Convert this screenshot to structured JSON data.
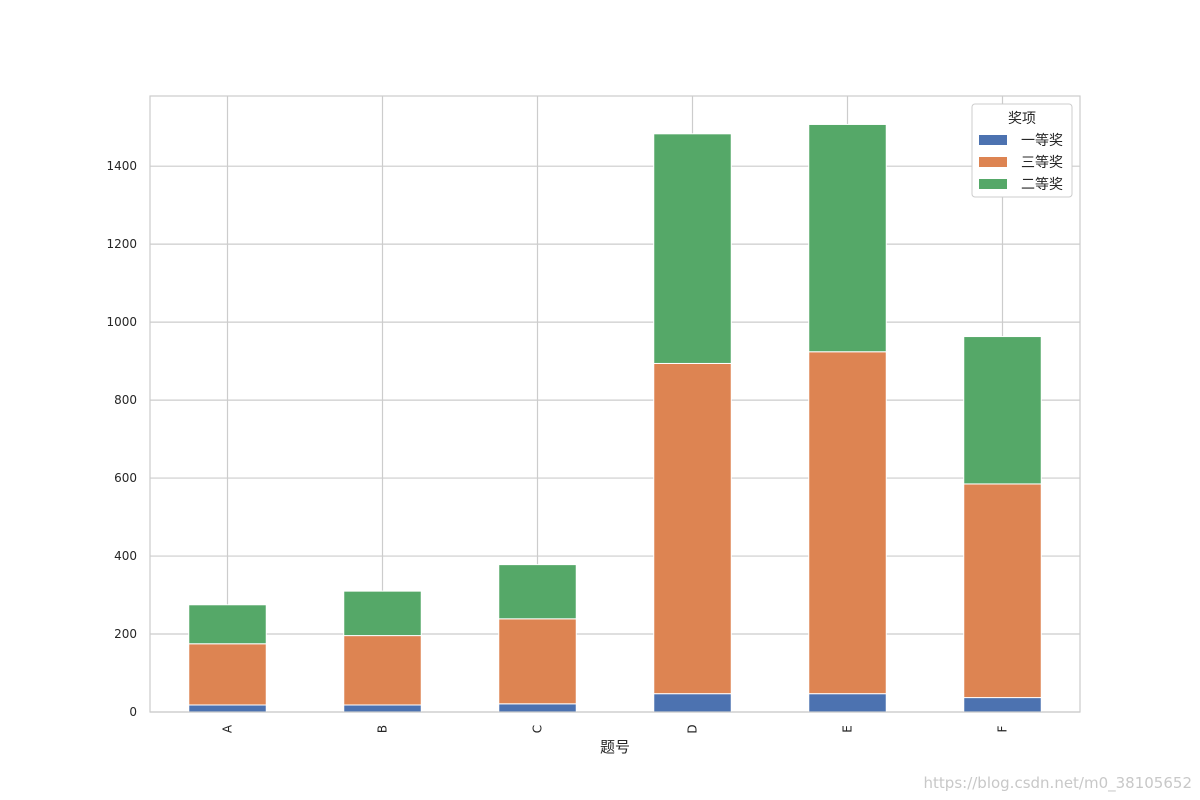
{
  "chart_data": {
    "type": "bar",
    "stacked": true,
    "categories": [
      "A",
      "B",
      "C",
      "D",
      "E",
      "F"
    ],
    "series": [
      {
        "name": "一等奖",
        "color": "#4c72b0",
        "values": [
          18,
          18,
          21,
          47,
          47,
          37
        ]
      },
      {
        "name": "三等奖",
        "color": "#dd8452",
        "values": [
          157,
          178,
          218,
          847,
          877,
          548
        ]
      },
      {
        "name": "二等奖",
        "color": "#55a868",
        "values": [
          100,
          114,
          139,
          589,
          583,
          378
        ]
      }
    ],
    "title": "",
    "xlabel": "题号",
    "ylabel": "",
    "ylim": [
      0,
      1580
    ],
    "yticks": [
      0,
      200,
      400,
      600,
      800,
      1000,
      1200,
      1400
    ],
    "grid": true,
    "legend": {
      "title": "奖项",
      "placement": "top-right"
    }
  },
  "watermark": "https://blog.csdn.net/m0_38105652"
}
